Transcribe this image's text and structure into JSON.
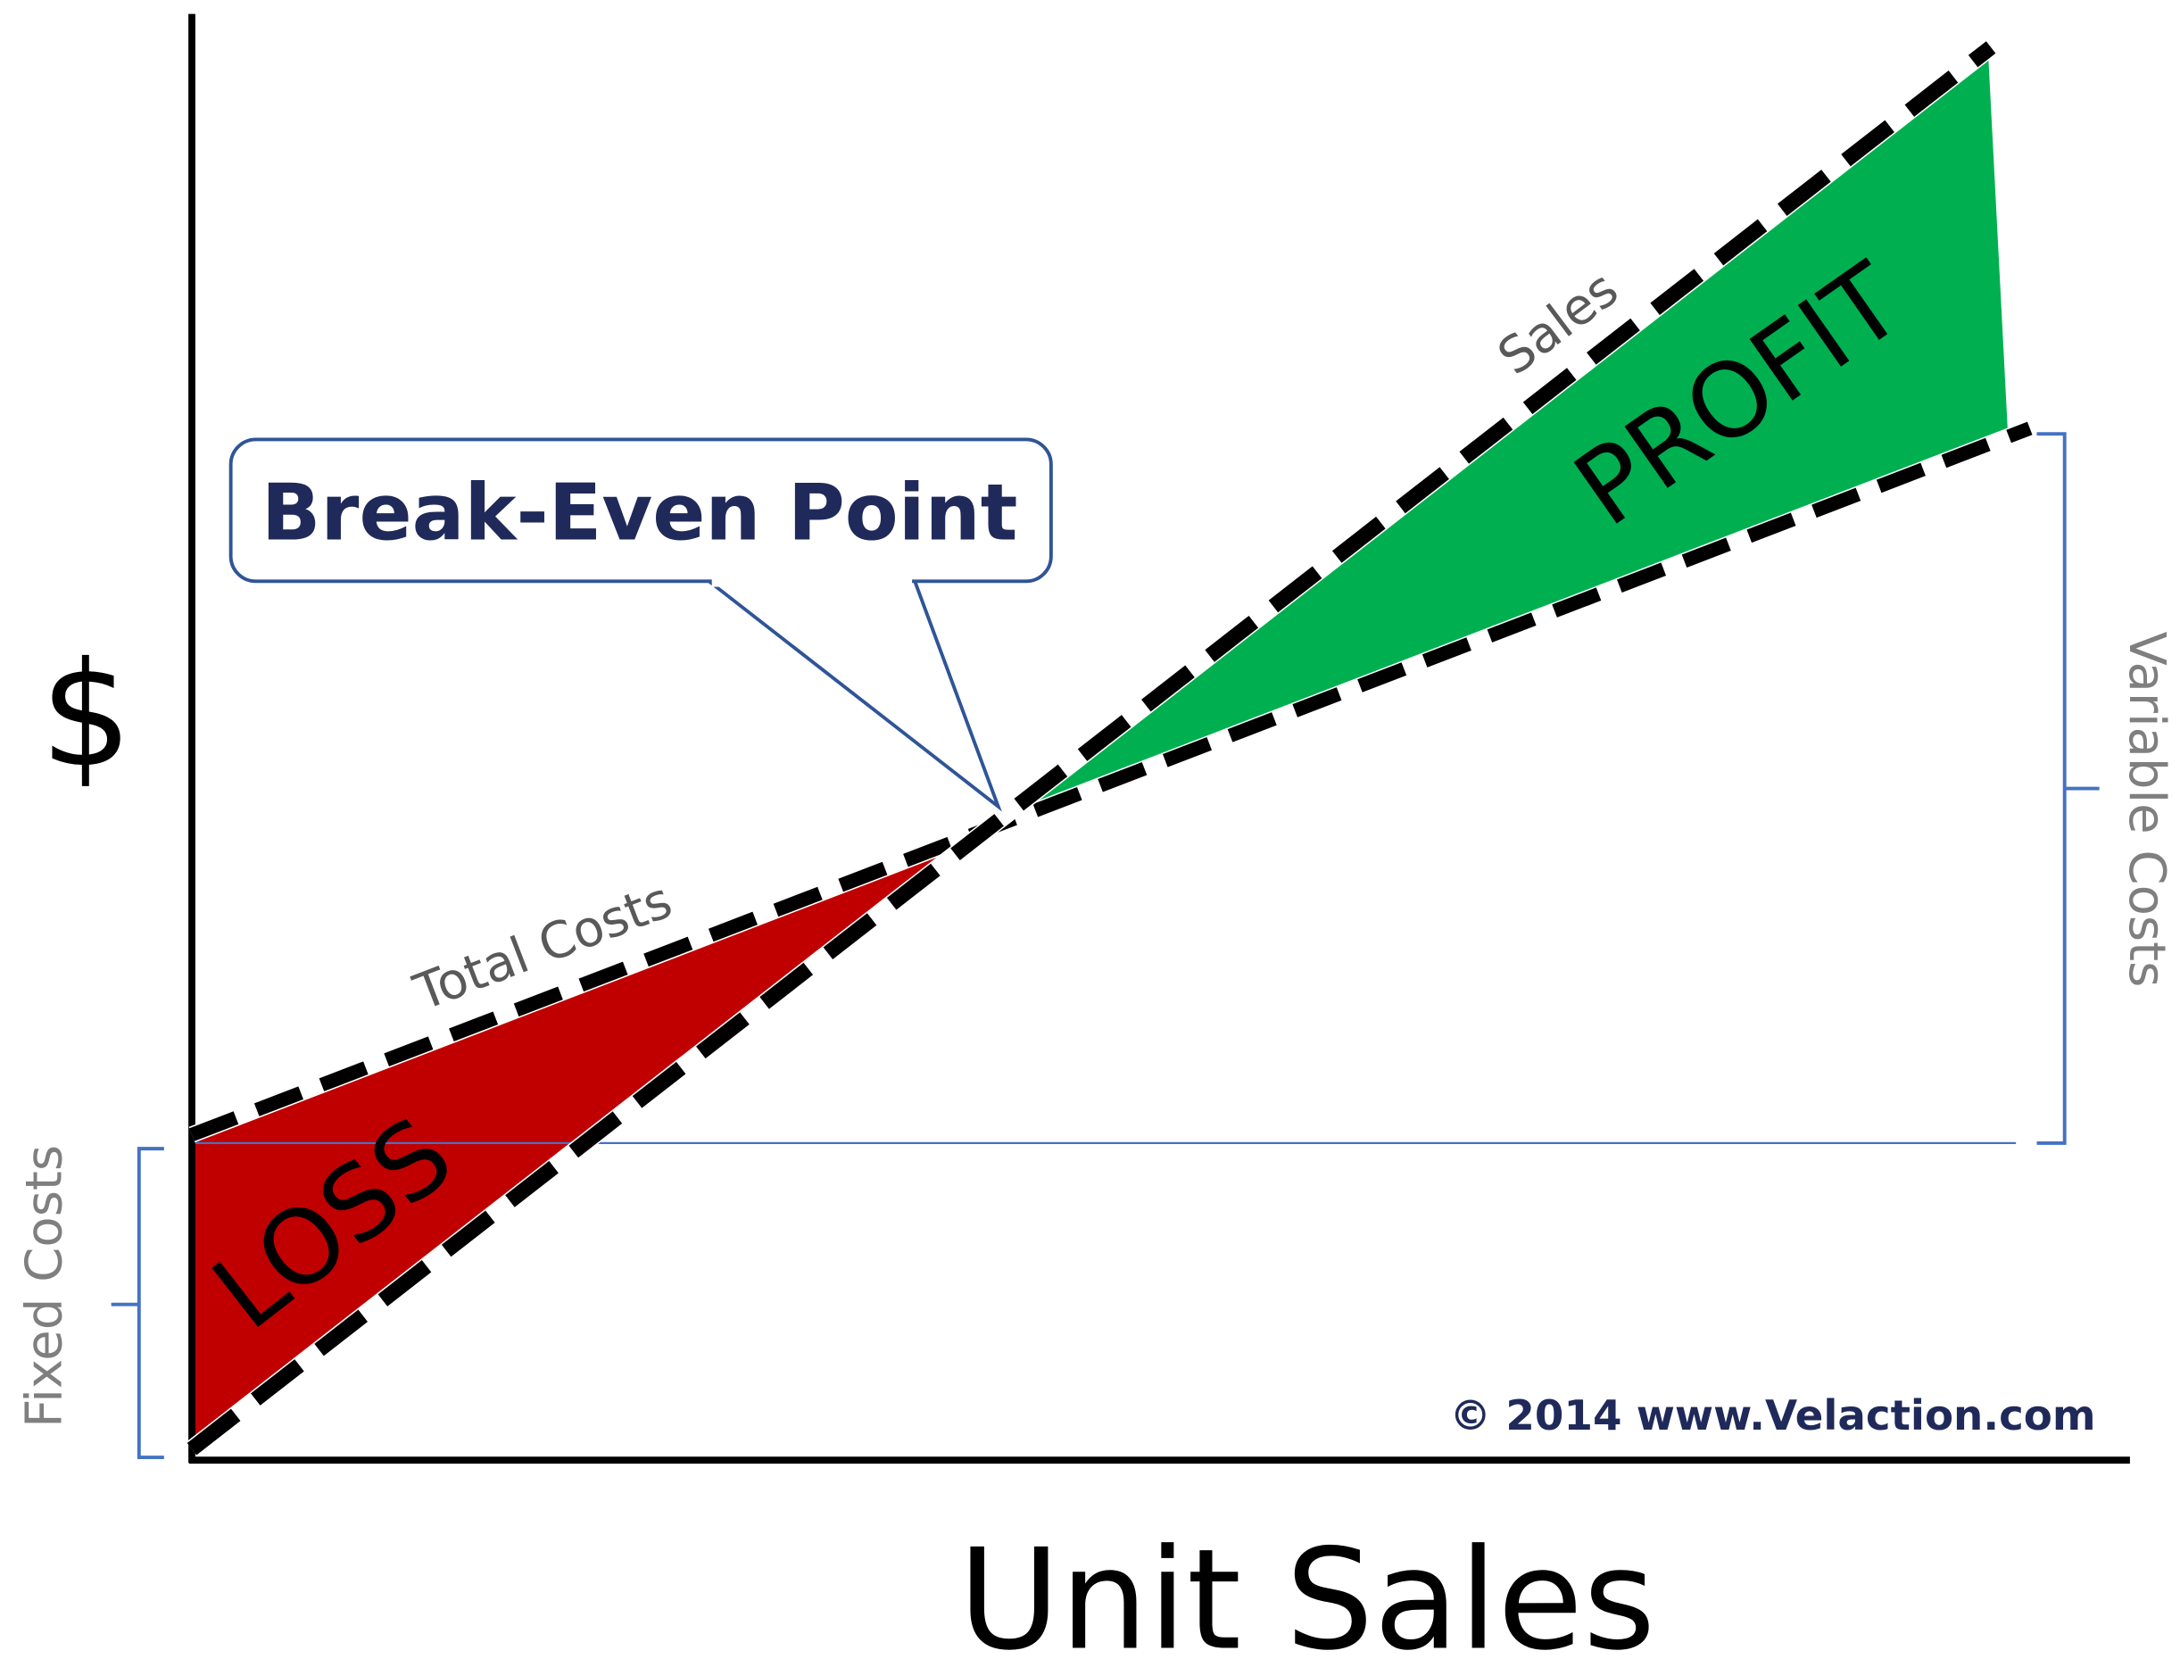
{
  "y_axis_label": "$",
  "x_axis_label": "Unit Sales",
  "callout": "Break-Even Point",
  "lines": {
    "sales": "Sales",
    "total_costs": "Total Costs"
  },
  "regions": {
    "profit": "PROFIT",
    "loss": "LOSS"
  },
  "brackets": {
    "fixed_costs": "Fixed Costs",
    "variable_costs": "Variable Costs"
  },
  "copyright": "© 2014 www.Velaction.com"
}
